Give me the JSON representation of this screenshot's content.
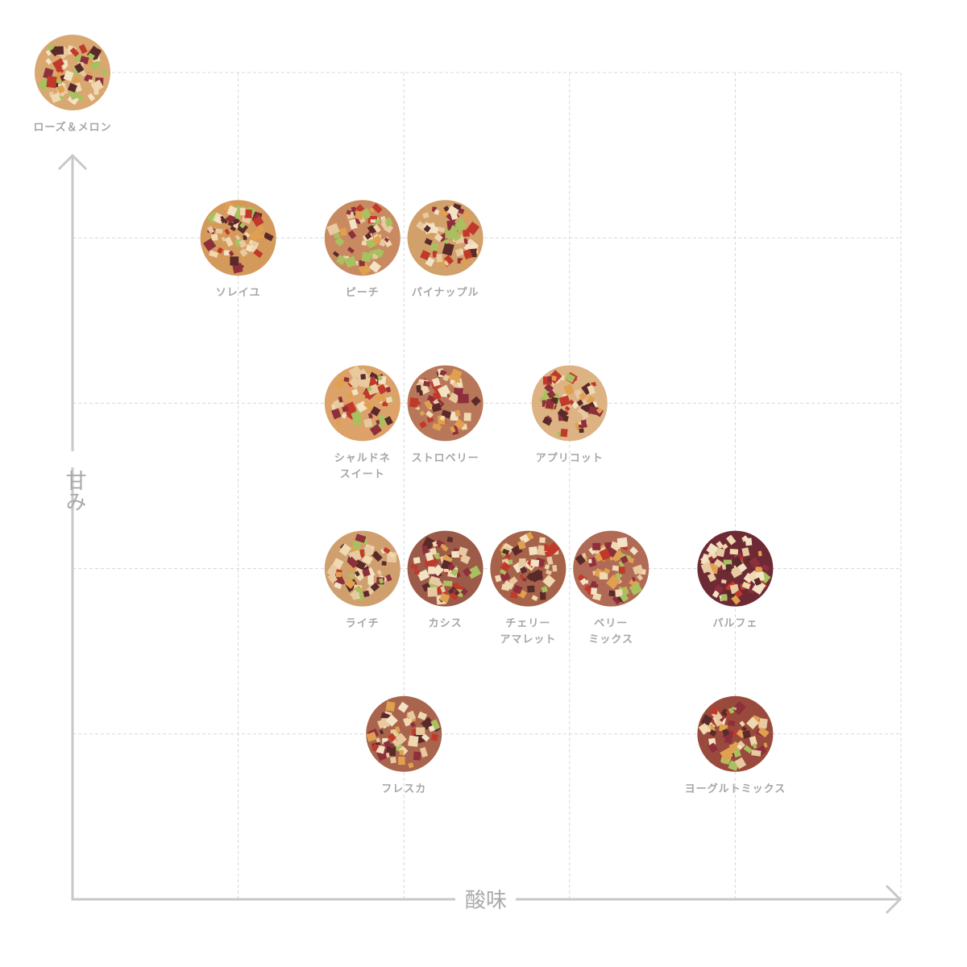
{
  "chart_data": {
    "type": "scatter",
    "xlabel": "酸味",
    "ylabel": "甘み",
    "xlim": [
      0,
      5
    ],
    "ylim": [
      0,
      5
    ],
    "xticks": [
      1,
      2,
      3,
      4,
      5
    ],
    "yticks": [
      1,
      2,
      3,
      4,
      5
    ],
    "grid": true,
    "points": [
      {
        "label": [
          "ローズ＆メロン"
        ],
        "x": 0,
        "y": 5,
        "color": "#d9a770"
      },
      {
        "label": [
          "ソレイユ"
        ],
        "x": 1,
        "y": 4,
        "color": "#d49a5c"
      },
      {
        "label": [
          "ピーチ"
        ],
        "x": 1.75,
        "y": 4,
        "color": "#c98a62"
      },
      {
        "label": [
          "パイナップル"
        ],
        "x": 2.25,
        "y": 4,
        "color": "#d2a06a"
      },
      {
        "label": [
          "シャルドネ",
          "スイート"
        ],
        "x": 1.75,
        "y": 3,
        "color": "#dca26a"
      },
      {
        "label": [
          "ストロベリー"
        ],
        "x": 2.25,
        "y": 3,
        "color": "#b9775a"
      },
      {
        "label": [
          "アプリコット"
        ],
        "x": 3,
        "y": 3,
        "color": "#ddb384"
      },
      {
        "label": [
          "ライチ"
        ],
        "x": 1.75,
        "y": 2,
        "color": "#cfa06e"
      },
      {
        "label": [
          "カシス"
        ],
        "x": 2.25,
        "y": 2,
        "color": "#9c5a48"
      },
      {
        "label": [
          "チェリー",
          "アマレット"
        ],
        "x": 2.75,
        "y": 2,
        "color": "#a6634a"
      },
      {
        "label": [
          "ベリー",
          "ミックス"
        ],
        "x": 3.25,
        "y": 2,
        "color": "#b06a55"
      },
      {
        "label": [
          "パルフェ"
        ],
        "x": 4,
        "y": 2,
        "color": "#6e2a34"
      },
      {
        "label": [
          "フレスカ"
        ],
        "x": 2,
        "y": 1,
        "color": "#a8644c"
      },
      {
        "label": [
          "ヨーグルトミックス"
        ],
        "x": 4,
        "y": 1,
        "color": "#9a4a3c"
      }
    ]
  }
}
